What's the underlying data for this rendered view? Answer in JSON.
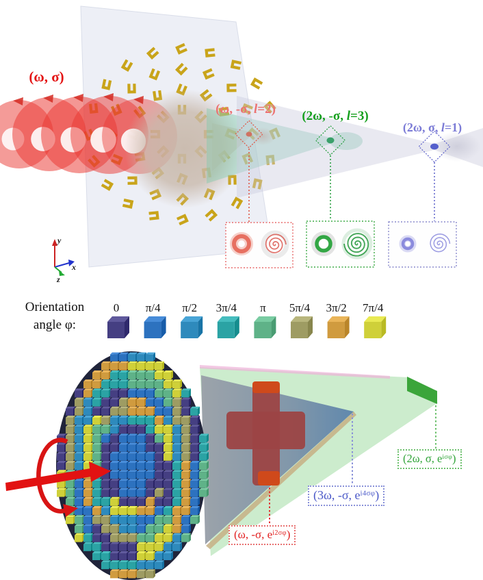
{
  "figure": {
    "top_panel": {
      "incident_label": {
        "text": "(ω, σ)",
        "color": "#e41414"
      },
      "beam1": {
        "pre": "(ω, -σ, ",
        "var": "l",
        "post": "=2)",
        "color": "#ec7272"
      },
      "beam2": {
        "pre": "(2ω, -σ, ",
        "var": "l",
        "post": "=3)",
        "color": "#16a01e"
      },
      "beam3": {
        "pre": "(2ω, σ, ",
        "var": "l",
        "post": "=1)",
        "color": "#7b7bd6"
      },
      "axes": {
        "x_label": "x",
        "y_label": "y",
        "z_label": "z"
      }
    },
    "legend": {
      "title_line1": "Orientation",
      "title_line2": "angle φ:",
      "items": [
        {
          "label": "0",
          "color": "#453f82"
        },
        {
          "label": "π/4",
          "color": "#2d72bf"
        },
        {
          "label": "π/2",
          "color": "#2e8abc"
        },
        {
          "label": "3π/4",
          "color": "#2ba3a4"
        },
        {
          "label": "π",
          "color": "#5fb288"
        },
        {
          "label": "5π/4",
          "color": "#9e9c63"
        },
        {
          "label": "3π/2",
          "color": "#d09b3f"
        },
        {
          "label": "7π/4",
          "color": "#cfd039"
        }
      ]
    },
    "bottom_panel": {
      "beam_red": {
        "pre": "(ω, -σ, e",
        "sup": "i2σφ",
        "post": ")",
        "color": "#e22222",
        "border": "#e87070"
      },
      "beam_blue": {
        "pre": "(3ω, -σ, e",
        "sup": "i4σφ",
        "post": ")",
        "color": "#4a58c8",
        "border": "#8890d8"
      },
      "beam_green": {
        "pre": "(2ω, σ, e",
        "sup": "iσφ",
        "post": ")",
        "color": "#2fa437",
        "border": "#6cc06c"
      }
    }
  }
}
